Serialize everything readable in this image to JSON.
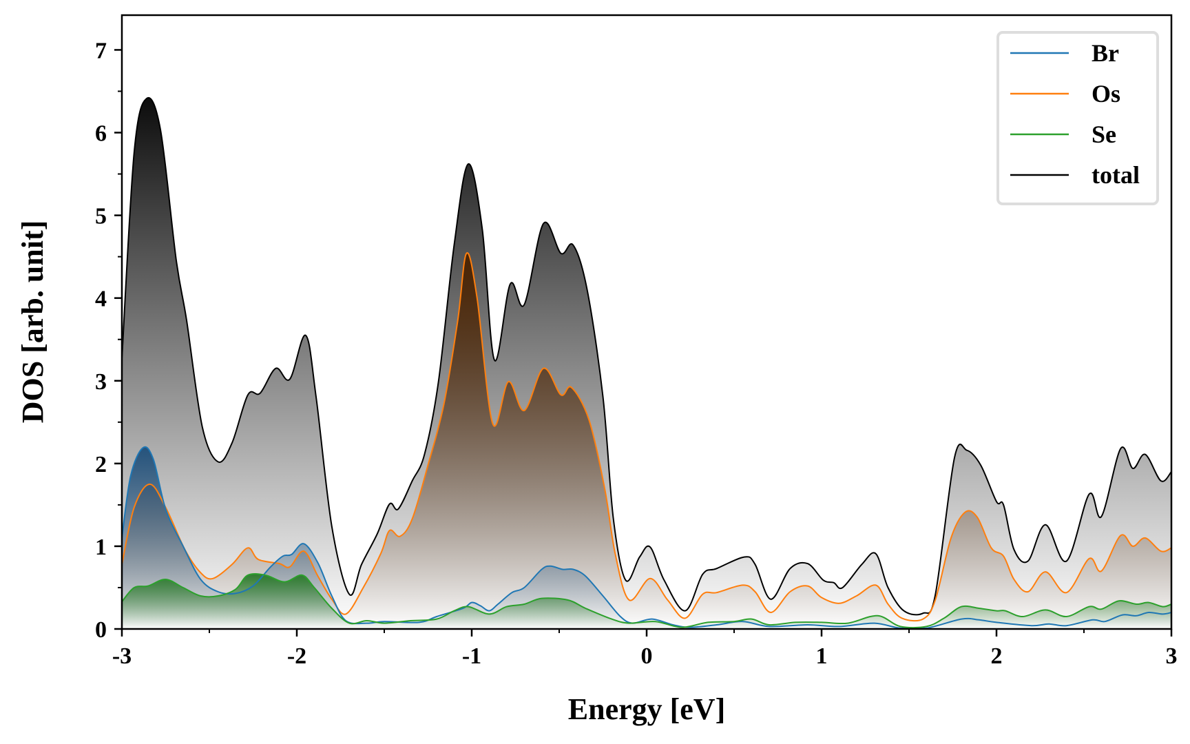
{
  "chart_data": {
    "type": "area",
    "title": "",
    "xlabel": "Energy [eV]",
    "ylabel": "DOS [arb. unit]",
    "xlim": [
      -3,
      3
    ],
    "ylim": [
      0,
      7.42
    ],
    "xticks": [
      "-3",
      "-2",
      "-1",
      "0",
      "1",
      "2",
      "3"
    ],
    "xtick_values": [
      -3,
      -2,
      -1,
      0,
      1,
      2,
      3
    ],
    "yticks": [
      "0",
      "1",
      "2",
      "3",
      "4",
      "5",
      "6",
      "7"
    ],
    "ytick_values": [
      0,
      1,
      2,
      3,
      4,
      5,
      6,
      7
    ],
    "grid": false,
    "legend_placement": "top-right",
    "series": [
      {
        "name": "total",
        "color": "#000000",
        "fill_top": "#000000",
        "points": [
          [
            -3,
            3.27
          ],
          [
            -2.93,
            5.76
          ],
          [
            -2.86,
            6.41
          ],
          [
            -2.78,
            6.04
          ],
          [
            -2.69,
            4.47
          ],
          [
            -2.63,
            3.73
          ],
          [
            -2.54,
            2.44
          ],
          [
            -2.45,
            2.02
          ],
          [
            -2.37,
            2.25
          ],
          [
            -2.28,
            2.83
          ],
          [
            -2.21,
            2.85
          ],
          [
            -2.12,
            3.15
          ],
          [
            -2.04,
            3.02
          ],
          [
            -1.95,
            3.55
          ],
          [
            -1.89,
            2.81
          ],
          [
            -1.8,
            1.24
          ],
          [
            -1.7,
            0.42
          ],
          [
            -1.63,
            0.78
          ],
          [
            -1.54,
            1.15
          ],
          [
            -1.47,
            1.51
          ],
          [
            -1.42,
            1.45
          ],
          [
            -1.34,
            1.79
          ],
          [
            -1.27,
            2.11
          ],
          [
            -1.19,
            2.99
          ],
          [
            -1.1,
            4.65
          ],
          [
            -1.02,
            5.62
          ],
          [
            -0.94,
            4.84
          ],
          [
            -0.87,
            3.25
          ],
          [
            -0.78,
            4.17
          ],
          [
            -0.7,
            3.92
          ],
          [
            -0.59,
            4.9
          ],
          [
            -0.49,
            4.54
          ],
          [
            -0.42,
            4.64
          ],
          [
            -0.34,
            4.1
          ],
          [
            -0.25,
            2.81
          ],
          [
            -0.19,
            1.33
          ],
          [
            -0.12,
            0.59
          ],
          [
            -0.04,
            0.87
          ],
          [
            0.02,
            0.99
          ],
          [
            0.1,
            0.59
          ],
          [
            0.22,
            0.22
          ],
          [
            0.32,
            0.66
          ],
          [
            0.4,
            0.73
          ],
          [
            0.56,
            0.87
          ],
          [
            0.62,
            0.78
          ],
          [
            0.71,
            0.36
          ],
          [
            0.82,
            0.73
          ],
          [
            0.92,
            0.79
          ],
          [
            1.01,
            0.59
          ],
          [
            1.07,
            0.56
          ],
          [
            1.12,
            0.5
          ],
          [
            1.23,
            0.78
          ],
          [
            1.31,
            0.91
          ],
          [
            1.38,
            0.5
          ],
          [
            1.47,
            0.22
          ],
          [
            1.58,
            0.19
          ],
          [
            1.65,
            0.41
          ],
          [
            1.76,
            2.07
          ],
          [
            1.83,
            2.16
          ],
          [
            1.91,
            1.98
          ],
          [
            2.0,
            1.54
          ],
          [
            2.04,
            1.5
          ],
          [
            2.1,
            0.96
          ],
          [
            2.18,
            0.82
          ],
          [
            2.28,
            1.26
          ],
          [
            2.4,
            0.82
          ],
          [
            2.53,
            1.63
          ],
          [
            2.6,
            1.36
          ],
          [
            2.71,
            2.18
          ],
          [
            2.78,
            1.94
          ],
          [
            2.85,
            2.11
          ],
          [
            2.94,
            1.79
          ],
          [
            3.0,
            1.9
          ]
        ]
      },
      {
        "name": "Os",
        "color": "#ff7f0e",
        "fill_top": "#4a2200",
        "points": [
          [
            -3,
            0.78
          ],
          [
            -2.93,
            1.47
          ],
          [
            -2.84,
            1.75
          ],
          [
            -2.75,
            1.47
          ],
          [
            -2.64,
            0.96
          ],
          [
            -2.55,
            0.68
          ],
          [
            -2.48,
            0.61
          ],
          [
            -2.37,
            0.78
          ],
          [
            -2.28,
            0.98
          ],
          [
            -2.22,
            0.84
          ],
          [
            -2.1,
            0.79
          ],
          [
            -2.04,
            0.75
          ],
          [
            -1.96,
            0.94
          ],
          [
            -1.88,
            0.64
          ],
          [
            -1.8,
            0.36
          ],
          [
            -1.72,
            0.18
          ],
          [
            -1.62,
            0.5
          ],
          [
            -1.52,
            0.91
          ],
          [
            -1.47,
            1.19
          ],
          [
            -1.41,
            1.12
          ],
          [
            -1.34,
            1.33
          ],
          [
            -1.25,
            1.98
          ],
          [
            -1.16,
            2.71
          ],
          [
            -1.08,
            3.73
          ],
          [
            -1.03,
            4.54
          ],
          [
            -0.97,
            4.01
          ],
          [
            -0.88,
            2.48
          ],
          [
            -0.79,
            2.99
          ],
          [
            -0.7,
            2.64
          ],
          [
            -0.59,
            3.15
          ],
          [
            -0.49,
            2.83
          ],
          [
            -0.43,
            2.92
          ],
          [
            -0.33,
            2.53
          ],
          [
            -0.24,
            1.7
          ],
          [
            -0.18,
            0.91
          ],
          [
            -0.1,
            0.35
          ],
          [
            0.02,
            0.61
          ],
          [
            0.12,
            0.35
          ],
          [
            0.22,
            0.13
          ],
          [
            0.32,
            0.42
          ],
          [
            0.4,
            0.44
          ],
          [
            0.55,
            0.53
          ],
          [
            0.62,
            0.45
          ],
          [
            0.71,
            0.2
          ],
          [
            0.82,
            0.45
          ],
          [
            0.92,
            0.52
          ],
          [
            1.0,
            0.38
          ],
          [
            1.1,
            0.31
          ],
          [
            1.2,
            0.4
          ],
          [
            1.31,
            0.53
          ],
          [
            1.38,
            0.3
          ],
          [
            1.46,
            0.13
          ],
          [
            1.58,
            0.12
          ],
          [
            1.65,
            0.35
          ],
          [
            1.74,
            1.1
          ],
          [
            1.82,
            1.41
          ],
          [
            1.89,
            1.35
          ],
          [
            1.97,
            0.98
          ],
          [
            2.04,
            0.88
          ],
          [
            2.1,
            0.6
          ],
          [
            2.18,
            0.45
          ],
          [
            2.28,
            0.69
          ],
          [
            2.4,
            0.44
          ],
          [
            2.53,
            0.85
          ],
          [
            2.6,
            0.7
          ],
          [
            2.71,
            1.13
          ],
          [
            2.78,
            1.0
          ],
          [
            2.85,
            1.1
          ],
          [
            2.94,
            0.94
          ],
          [
            3.0,
            0.98
          ]
        ]
      },
      {
        "name": "Br",
        "color": "#1f77b4",
        "fill_top": "#1f4f7a",
        "points": [
          [
            -3,
            1.1
          ],
          [
            -2.95,
            1.85
          ],
          [
            -2.88,
            2.19
          ],
          [
            -2.82,
            2.05
          ],
          [
            -2.75,
            1.45
          ],
          [
            -2.65,
            1.0
          ],
          [
            -2.55,
            0.6
          ],
          [
            -2.45,
            0.45
          ],
          [
            -2.35,
            0.43
          ],
          [
            -2.25,
            0.52
          ],
          [
            -2.15,
            0.75
          ],
          [
            -2.08,
            0.88
          ],
          [
            -2.03,
            0.9
          ],
          [
            -1.96,
            1.03
          ],
          [
            -1.88,
            0.8
          ],
          [
            -1.8,
            0.4
          ],
          [
            -1.72,
            0.1
          ],
          [
            -1.6,
            0.07
          ],
          [
            -1.5,
            0.09
          ],
          [
            -1.3,
            0.08
          ],
          [
            -1.2,
            0.15
          ],
          [
            -1.05,
            0.25
          ],
          [
            -1.0,
            0.32
          ],
          [
            -0.95,
            0.28
          ],
          [
            -0.9,
            0.22
          ],
          [
            -0.85,
            0.3
          ],
          [
            -0.77,
            0.44
          ],
          [
            -0.7,
            0.5
          ],
          [
            -0.6,
            0.72
          ],
          [
            -0.55,
            0.76
          ],
          [
            -0.48,
            0.72
          ],
          [
            -0.42,
            0.72
          ],
          [
            -0.35,
            0.64
          ],
          [
            -0.25,
            0.4
          ],
          [
            -0.15,
            0.15
          ],
          [
            -0.08,
            0.07
          ],
          [
            0.03,
            0.12
          ],
          [
            0.15,
            0.05
          ],
          [
            0.25,
            0.02
          ],
          [
            0.4,
            0.05
          ],
          [
            0.55,
            0.09
          ],
          [
            0.7,
            0.03
          ],
          [
            0.92,
            0.05
          ],
          [
            1.1,
            0.03
          ],
          [
            1.3,
            0.07
          ],
          [
            1.45,
            0.01
          ],
          [
            1.6,
            0.01
          ],
          [
            1.8,
            0.12
          ],
          [
            1.9,
            0.11
          ],
          [
            2.0,
            0.08
          ],
          [
            2.2,
            0.04
          ],
          [
            2.3,
            0.06
          ],
          [
            2.4,
            0.04
          ],
          [
            2.55,
            0.11
          ],
          [
            2.62,
            0.09
          ],
          [
            2.72,
            0.17
          ],
          [
            2.8,
            0.16
          ],
          [
            2.87,
            0.2
          ],
          [
            2.95,
            0.18
          ],
          [
            3.0,
            0.2
          ]
        ]
      },
      {
        "name": "Se",
        "color": "#2ca02c",
        "fill_top": "#2a7a2a",
        "points": [
          [
            -3,
            0.33
          ],
          [
            -2.93,
            0.5
          ],
          [
            -2.85,
            0.52
          ],
          [
            -2.75,
            0.6
          ],
          [
            -2.65,
            0.5
          ],
          [
            -2.55,
            0.4
          ],
          [
            -2.45,
            0.4
          ],
          [
            -2.35,
            0.48
          ],
          [
            -2.28,
            0.65
          ],
          [
            -2.18,
            0.65
          ],
          [
            -2.07,
            0.57
          ],
          [
            -1.97,
            0.65
          ],
          [
            -1.9,
            0.5
          ],
          [
            -1.8,
            0.25
          ],
          [
            -1.7,
            0.07
          ],
          [
            -1.6,
            0.1
          ],
          [
            -1.5,
            0.07
          ],
          [
            -1.35,
            0.1
          ],
          [
            -1.2,
            0.12
          ],
          [
            -1.1,
            0.22
          ],
          [
            -1.02,
            0.27
          ],
          [
            -0.9,
            0.18
          ],
          [
            -0.8,
            0.27
          ],
          [
            -0.7,
            0.3
          ],
          [
            -0.6,
            0.37
          ],
          [
            -0.45,
            0.35
          ],
          [
            -0.35,
            0.25
          ],
          [
            -0.2,
            0.12
          ],
          [
            -0.1,
            0.07
          ],
          [
            0.05,
            0.09
          ],
          [
            0.2,
            0.02
          ],
          [
            0.35,
            0.08
          ],
          [
            0.5,
            0.09
          ],
          [
            0.6,
            0.12
          ],
          [
            0.7,
            0.05
          ],
          [
            0.85,
            0.08
          ],
          [
            1.0,
            0.08
          ],
          [
            1.15,
            0.07
          ],
          [
            1.32,
            0.16
          ],
          [
            1.45,
            0.03
          ],
          [
            1.6,
            0.03
          ],
          [
            1.7,
            0.13
          ],
          [
            1.8,
            0.27
          ],
          [
            1.9,
            0.25
          ],
          [
            2.0,
            0.22
          ],
          [
            2.05,
            0.22
          ],
          [
            2.15,
            0.15
          ],
          [
            2.28,
            0.23
          ],
          [
            2.4,
            0.15
          ],
          [
            2.53,
            0.27
          ],
          [
            2.6,
            0.24
          ],
          [
            2.7,
            0.34
          ],
          [
            2.8,
            0.3
          ],
          [
            2.87,
            0.32
          ],
          [
            2.95,
            0.27
          ],
          [
            3.0,
            0.3
          ]
        ]
      }
    ],
    "legend": [
      "Br",
      "Os",
      "Se",
      "total"
    ]
  }
}
